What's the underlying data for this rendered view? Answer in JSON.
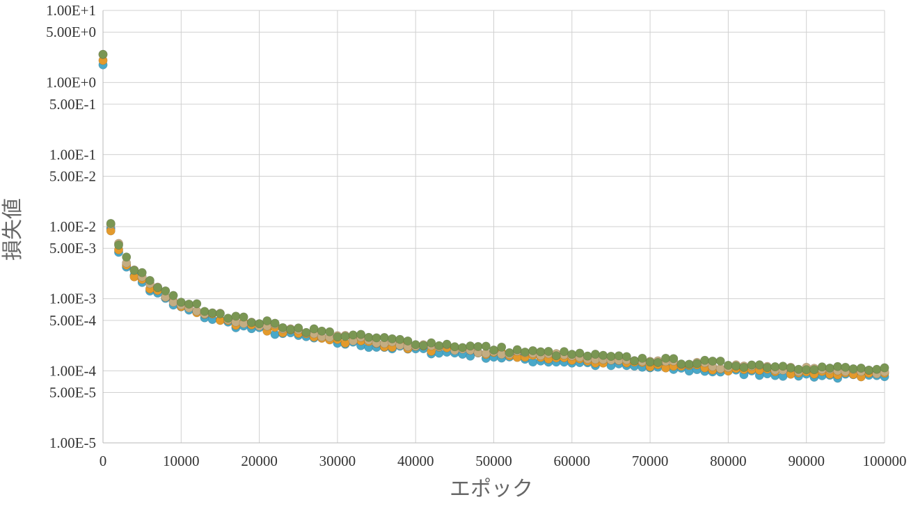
{
  "chart_data": {
    "type": "scatter",
    "xlabel": "エポック",
    "ylabel": "損失値",
    "xlim": [
      0,
      100000
    ],
    "ylim": [
      1e-05,
      10
    ],
    "yscale": "log",
    "grid": true,
    "x_ticks": [
      "0",
      "10000",
      "20000",
      "30000",
      "40000",
      "50000",
      "60000",
      "70000",
      "80000",
      "90000",
      "100000"
    ],
    "y_ticks": [
      {
        "value": 10,
        "label": "1.00E+1"
      },
      {
        "value": 5,
        "label": "5.00E+0"
      },
      {
        "value": 1,
        "label": "1.00E+0"
      },
      {
        "value": 0.5,
        "label": "5.00E-1"
      },
      {
        "value": 0.1,
        "label": "1.00E-1"
      },
      {
        "value": 0.05,
        "label": "5.00E-2"
      },
      {
        "value": 0.01,
        "label": "1.00E-2"
      },
      {
        "value": 0.005,
        "label": "5.00E-3"
      },
      {
        "value": 0.001,
        "label": "1.00E-3"
      },
      {
        "value": 0.0005,
        "label": "5.00E-4"
      },
      {
        "value": 0.0001,
        "label": "1.00E-4"
      },
      {
        "value": 5e-05,
        "label": "5.00E-5"
      },
      {
        "value": 1e-05,
        "label": "1.00E-5"
      }
    ],
    "base_curve": {
      "x": [
        0,
        1000,
        2000,
        3000,
        4000,
        5000,
        6000,
        7000,
        8000,
        9000,
        10000,
        12000,
        14000,
        16000,
        18000,
        20000,
        22000,
        25000,
        28000,
        30000,
        35000,
        40000,
        45000,
        50000,
        55000,
        60000,
        65000,
        70000,
        75000,
        80000,
        85000,
        90000,
        95000,
        100000
      ],
      "y": [
        2.2,
        0.01,
        0.0052,
        0.0033,
        0.0023,
        0.0019,
        0.0015,
        0.0013,
        0.0011,
        0.00092,
        0.00085,
        0.0007,
        0.0006,
        0.00052,
        0.00046,
        0.00042,
        0.00039,
        0.00034,
        0.00031,
        0.00028,
        0.00025,
        0.00022,
        0.0002,
        0.00018,
        0.00016,
        0.00015,
        0.000135,
        0.000125,
        0.000118,
        0.00011,
        0.000105,
        0.0001,
        9.5e-05,
        9e-05
      ]
    },
    "series": [
      {
        "color": "#4aa8c8",
        "offset": 0.88
      },
      {
        "color": "#e39a2c",
        "offset": 0.96
      },
      {
        "color": "#c4ad82",
        "offset": 1.04
      },
      {
        "color": "#7a9653",
        "offset": 1.13
      }
    ],
    "sample_step": 1000
  }
}
